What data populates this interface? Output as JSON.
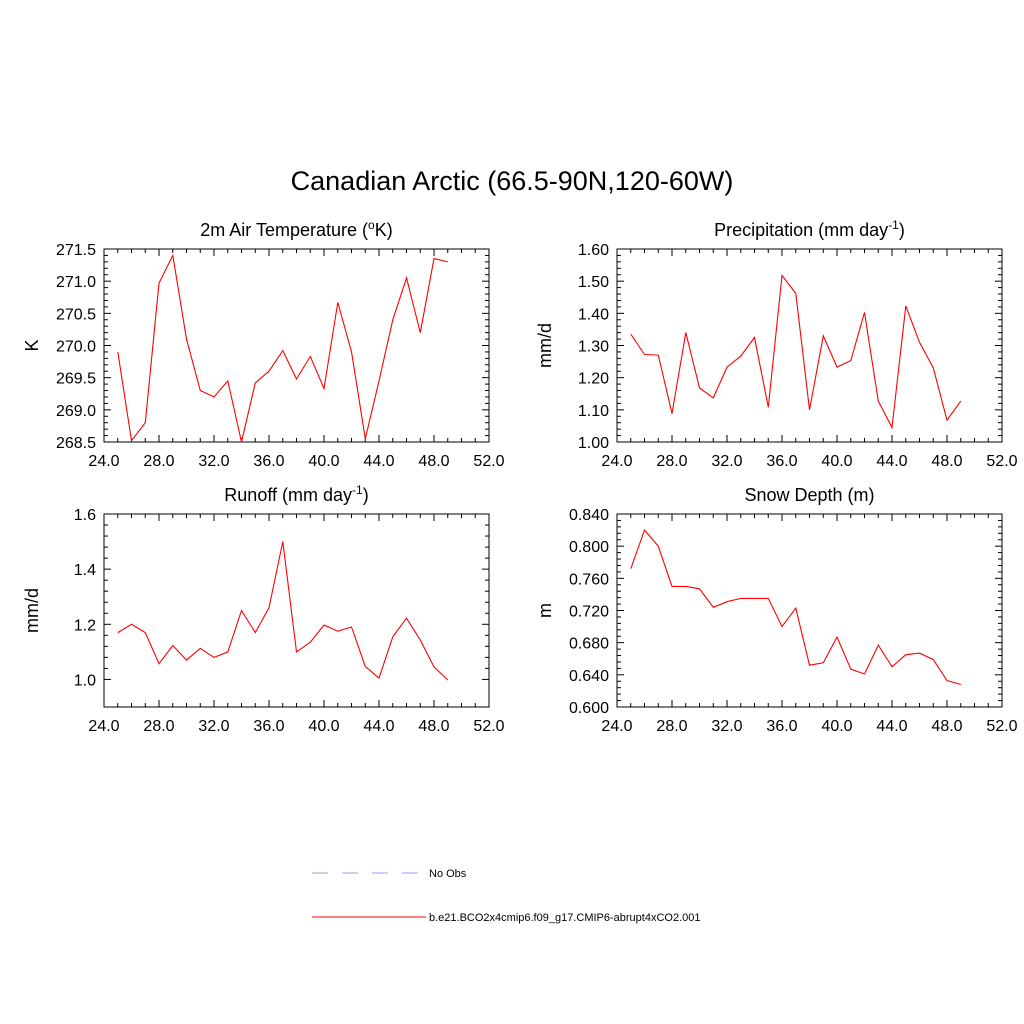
{
  "title": "Canadian Arctic (66.5-90N,120-60W)",
  "legend": [
    {
      "label": "No Obs",
      "color": "#9999ff",
      "style": "dashed"
    },
    {
      "label": "b.e21.BCO2x4cmip6.f09_g17.CMIP6-abrupt4xCO2.001",
      "color": "#ff0000",
      "style": "solid"
    }
  ],
  "chart_data": [
    {
      "type": "line",
      "title": "2m Air Temperature (",
      "title_sup": "o",
      "title_after": "K)",
      "title_sup2": "",
      "title_end": "",
      "ylabel": "K",
      "xlim": [
        24,
        52
      ],
      "ylim": [
        268.5,
        271.5
      ],
      "xticks": [
        "24.0",
        "28.0",
        "32.0",
        "36.0",
        "40.0",
        "44.0",
        "48.0",
        "52.0"
      ],
      "yticks": [
        "268.5",
        "269.0",
        "269.5",
        "270.0",
        "270.5",
        "271.0",
        "271.5"
      ],
      "x": [
        25,
        26,
        27,
        28,
        29,
        30,
        31,
        32,
        33,
        34,
        35,
        36,
        37,
        38,
        39,
        40,
        41,
        42,
        43,
        44,
        45,
        46,
        47,
        48,
        49
      ],
      "series": [
        {
          "name": "b.e21.BCO2x4cmip6.f09_g17.CMIP6-abrupt4xCO2.001",
          "color": "#ff0000",
          "values": [
            269.9,
            268.52,
            268.8,
            270.97,
            271.4,
            270.1,
            269.3,
            269.2,
            269.45,
            268.5,
            269.42,
            269.6,
            269.92,
            269.48,
            269.83,
            269.33,
            270.67,
            269.9,
            268.55,
            269.45,
            270.4,
            271.05,
            270.2,
            271.35,
            271.3
          ]
        }
      ]
    },
    {
      "type": "line",
      "title": "Precipitation (mm day",
      "title_sup": "-1",
      "title_after": ")",
      "ylabel": "mm/d",
      "xlim": [
        24,
        52
      ],
      "ylim": [
        1.0,
        1.6
      ],
      "xticks": [
        "24.0",
        "28.0",
        "32.0",
        "36.0",
        "40.0",
        "44.0",
        "48.0",
        "52.0"
      ],
      "yticks": [
        "1.00",
        "1.10",
        "1.20",
        "1.30",
        "1.40",
        "1.50",
        "1.60"
      ],
      "x": [
        25,
        26,
        27,
        28,
        29,
        30,
        31,
        32,
        33,
        34,
        35,
        36,
        37,
        38,
        39,
        40,
        41,
        42,
        43,
        44,
        45,
        46,
        47,
        48,
        49
      ],
      "series": [
        {
          "name": "b.e21.BCO2x4cmip6.f09_g17.CMIP6-abrupt4xCO2.001",
          "color": "#ff0000",
          "values": [
            1.335,
            1.272,
            1.27,
            1.088,
            1.34,
            1.168,
            1.137,
            1.233,
            1.267,
            1.325,
            1.108,
            1.518,
            1.462,
            1.1,
            1.33,
            1.233,
            1.253,
            1.403,
            1.127,
            1.045,
            1.423,
            1.31,
            1.23,
            1.068,
            1.127
          ]
        }
      ]
    },
    {
      "type": "line",
      "title": "Runoff (mm day",
      "title_sup": "-1",
      "title_after": ")",
      "ylabel": "mm/d",
      "xlim": [
        24,
        52
      ],
      "ylim": [
        0.9,
        1.6
      ],
      "xticks": [
        "24.0",
        "28.0",
        "32.0",
        "36.0",
        "40.0",
        "44.0",
        "48.0",
        "52.0"
      ],
      "yticks": [
        "1.0",
        "1.2",
        "1.4",
        "1.6"
      ],
      "ytick_values": [
        1.0,
        1.2,
        1.4,
        1.6
      ],
      "x": [
        25,
        26,
        27,
        28,
        29,
        30,
        31,
        32,
        33,
        34,
        35,
        36,
        37,
        38,
        39,
        40,
        41,
        42,
        43,
        44,
        45,
        46,
        47,
        48,
        49
      ],
      "series": [
        {
          "name": "b.e21.BCO2x4cmip6.f09_g17.CMIP6-abrupt4xCO2.001",
          "color": "#ff0000",
          "values": [
            1.17,
            1.2,
            1.17,
            1.057,
            1.123,
            1.07,
            1.113,
            1.08,
            1.1,
            1.25,
            1.17,
            1.26,
            1.5,
            1.1,
            1.135,
            1.197,
            1.175,
            1.19,
            1.047,
            1.005,
            1.155,
            1.222,
            1.143,
            1.045,
            0.998
          ]
        }
      ]
    },
    {
      "type": "line",
      "title": "Snow Depth (m)",
      "title_sup": "",
      "title_after": "",
      "ylabel": "m",
      "xlim": [
        24,
        52
      ],
      "ylim": [
        0.6,
        0.84
      ],
      "xticks": [
        "24.0",
        "28.0",
        "32.0",
        "36.0",
        "40.0",
        "44.0",
        "48.0",
        "52.0"
      ],
      "yticks": [
        "0.600",
        "0.640",
        "0.680",
        "0.720",
        "0.760",
        "0.800",
        "0.840"
      ],
      "x": [
        25,
        26,
        27,
        28,
        29,
        30,
        31,
        32,
        33,
        34,
        35,
        36,
        37,
        38,
        39,
        40,
        41,
        42,
        43,
        44,
        45,
        46,
        47,
        48,
        49
      ],
      "series": [
        {
          "name": "b.e21.BCO2x4cmip6.f09_g17.CMIP6-abrupt4xCO2.001",
          "color": "#ff0000",
          "values": [
            0.772,
            0.82,
            0.8,
            0.75,
            0.75,
            0.747,
            0.724,
            0.731,
            0.735,
            0.735,
            0.735,
            0.7,
            0.723,
            0.652,
            0.655,
            0.687,
            0.647,
            0.641,
            0.677,
            0.65,
            0.665,
            0.667,
            0.659,
            0.633,
            0.628
          ]
        }
      ]
    }
  ]
}
